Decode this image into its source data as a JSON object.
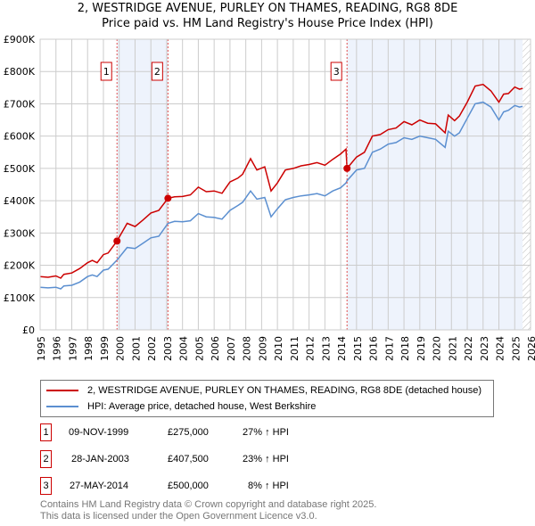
{
  "title": "2, WESTRIDGE AVENUE, PURLEY ON THAMES, READING, RG8 8DE",
  "subtitle": "Price paid vs. HM Land Registry's House Price Index (HPI)",
  "chart_data": {
    "type": "line",
    "ylim": [
      0,
      900000
    ],
    "xlim": [
      1995,
      2026
    ],
    "yticks": [
      "£0",
      "£100K",
      "£200K",
      "£300K",
      "£400K",
      "£500K",
      "£600K",
      "£700K",
      "£800K",
      "£900K"
    ],
    "xticks": [
      "1995",
      "1996",
      "1997",
      "1998",
      "1999",
      "2000",
      "2001",
      "2002",
      "2003",
      "2004",
      "2005",
      "2006",
      "2007",
      "2008",
      "2009",
      "2010",
      "2011",
      "2012",
      "2013",
      "2014",
      "2015",
      "2016",
      "2017",
      "2018",
      "2019",
      "2020",
      "2021",
      "2022",
      "2023",
      "2024",
      "2025",
      "2026"
    ],
    "series": [
      {
        "name": "2, WESTRIDGE AVENUE, PURLEY ON THAMES, READING, RG8 8DE (detached house)",
        "color": "#cc0000",
        "x": [
          1995,
          1995.5,
          1996,
          1996.3,
          1996.5,
          1997,
          1997.5,
          1998,
          1998.3,
          1998.6,
          1999,
          1999.3,
          1999.86,
          2000.5,
          2001,
          2001.5,
          2002,
          2002.5,
          2003.08,
          2003.5,
          2004,
          2004.5,
          2005,
          2005.5,
          2006,
          2006.5,
          2007,
          2007.5,
          2007.8,
          2008.3,
          2008.7,
          2009.2,
          2009.6,
          2010,
          2010.5,
          2011,
          2011.5,
          2012,
          2012.5,
          2013,
          2013.5,
          2014,
          2014.33,
          2014.4,
          2015,
          2015.5,
          2016,
          2016.5,
          2017,
          2017.5,
          2018,
          2018.5,
          2019,
          2019.5,
          2020,
          2020.6,
          2020.8,
          2021.2,
          2021.5,
          2022,
          2022.5,
          2023,
          2023.5,
          2024,
          2024.3,
          2024.6,
          2025,
          2025.3,
          2025.5
        ],
        "y": [
          165,
          163,
          167,
          160,
          172,
          176,
          190,
          208,
          215,
          208,
          233,
          238,
          275,
          330,
          320,
          340,
          362,
          370,
          407.5,
          412,
          413,
          418,
          442,
          428,
          430,
          423,
          458,
          470,
          482,
          530,
          495,
          505,
          430,
          455,
          495,
          500,
          508,
          512,
          518,
          510,
          528,
          545,
          560,
          500,
          535,
          550,
          600,
          605,
          620,
          625,
          645,
          635,
          650,
          640,
          638,
          610,
          665,
          648,
          662,
          705,
          755,
          760,
          740,
          705,
          730,
          732,
          752,
          745,
          748
        ]
      },
      {
        "name": "HPI: Average price, detached house, West Berkshire",
        "color": "#5b8fd0",
        "x": [
          1995,
          1995.5,
          1996,
          1996.3,
          1996.5,
          1997,
          1997.5,
          1998,
          1998.3,
          1998.6,
          1999,
          1999.3,
          1999.86,
          2000.5,
          2001,
          2001.5,
          2002,
          2002.5,
          2003.08,
          2003.5,
          2004,
          2004.5,
          2005,
          2005.5,
          2006,
          2006.5,
          2007,
          2007.5,
          2007.8,
          2008.3,
          2008.7,
          2009.2,
          2009.6,
          2010,
          2010.5,
          2011,
          2011.5,
          2012,
          2012.5,
          2013,
          2013.5,
          2014,
          2014.33,
          2014.4,
          2015,
          2015.5,
          2016,
          2016.5,
          2017,
          2017.5,
          2018,
          2018.5,
          2019,
          2019.5,
          2020,
          2020.6,
          2020.8,
          2021.2,
          2021.5,
          2022,
          2022.5,
          2023,
          2023.5,
          2024,
          2024.3,
          2024.6,
          2025,
          2025.3,
          2025.5
        ],
        "y": [
          132,
          130,
          132,
          127,
          136,
          138,
          148,
          165,
          170,
          165,
          185,
          188,
          216,
          255,
          252,
          268,
          285,
          290,
          330,
          336,
          335,
          338,
          360,
          350,
          348,
          343,
          370,
          385,
          395,
          430,
          405,
          410,
          350,
          375,
          403,
          410,
          415,
          418,
          422,
          415,
          430,
          440,
          455,
          462,
          495,
          500,
          550,
          560,
          575,
          580,
          595,
          590,
          600,
          595,
          590,
          565,
          615,
          600,
          610,
          655,
          700,
          705,
          690,
          650,
          675,
          680,
          695,
          690,
          692
        ]
      }
    ],
    "sales": [
      {
        "label": "1",
        "date": "09-NOV-1999",
        "x": 1999.86,
        "price": "£275,000",
        "value": 275000,
        "hpi": "27% ↑ HPI"
      },
      {
        "label": "2",
        "date": "28-JAN-2003",
        "x": 2003.08,
        "price": "£407,500",
        "value": 407500,
        "hpi": "23% ↑ HPI"
      },
      {
        "label": "3",
        "date": "27-MAY-2014",
        "x": 2014.4,
        "price": "£500,000",
        "value": 500000,
        "hpi": "8% ↑ HPI"
      }
    ],
    "shaded": [
      [
        1999.86,
        2003.08
      ],
      [
        2014.4,
        2025.5
      ]
    ],
    "forecast_start": 2025.5
  },
  "footer": [
    "Contains HM Land Registry data © Crown copyright and database right 2025.",
    "This data is licensed under the Open Government Licence v3.0."
  ]
}
